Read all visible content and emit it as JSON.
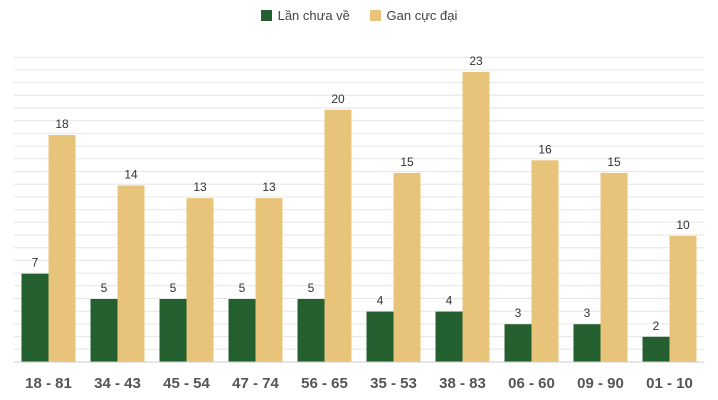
{
  "chart_data": {
    "type": "bar",
    "categories": [
      "18 - 81",
      "34 - 43",
      "45 - 54",
      "47 - 74",
      "56 - 65",
      "35 - 53",
      "38 - 83",
      "06 - 60",
      "09 - 90",
      "01 - 10"
    ],
    "series": [
      {
        "name": "Lần chưa về",
        "values": [
          7,
          5,
          5,
          5,
          5,
          4,
          4,
          3,
          3,
          2
        ],
        "color": "#24602f"
      },
      {
        "name": "Gan cực đại",
        "values": [
          18,
          14,
          13,
          13,
          20,
          15,
          23,
          16,
          15,
          10
        ],
        "color": "#e8c47a"
      }
    ],
    "ylim": [
      0,
      23
    ],
    "grid": true,
    "legend_position": "top-center"
  }
}
